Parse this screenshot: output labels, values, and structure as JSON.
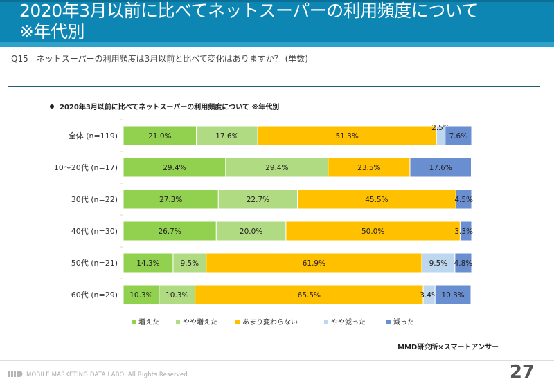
{
  "header": {
    "title_line1": "2020年3月以前に比べてネットスーパーの利用頻度について",
    "title_line2": "※年代別"
  },
  "question": "Q15　ネットスーパーの利用頻度は3月以前と比べて変化はありますか？ (単数)",
  "chart_data": {
    "type": "bar",
    "orientation": "horizontal-stacked-100",
    "title": "2020年3月以前に比べてネットスーパーの利用頻度について ※年代別",
    "categories": [
      "全体 (n=119)",
      "10～20代 (n=17)",
      "30代 (n=22)",
      "40代 (n=30)",
      "50代 (n=21)",
      "60代 (n=29)"
    ],
    "series": [
      {
        "name": "増えた",
        "color": "#92d050",
        "values": [
          21.0,
          29.4,
          27.3,
          26.7,
          14.3,
          10.3
        ]
      },
      {
        "name": "やや増えた",
        "color": "#b0db83",
        "values": [
          17.6,
          29.4,
          22.7,
          20.0,
          9.5,
          10.3
        ]
      },
      {
        "name": "あまり変わらない",
        "color": "#ffc000",
        "values": [
          51.3,
          23.5,
          45.5,
          50.0,
          61.9,
          65.5
        ]
      },
      {
        "name": "やや減った",
        "color": "#bdd7ee",
        "values": [
          2.5,
          0.0,
          0.0,
          0.0,
          9.5,
          3.4
        ]
      },
      {
        "name": "減った",
        "color": "#6a8fd0",
        "values": [
          7.6,
          17.6,
          4.5,
          3.3,
          4.8,
          10.3
        ]
      }
    ],
    "xlim": [
      0,
      100
    ],
    "value_format": "percent, 1 decimal",
    "legend": "bottom",
    "grid": false
  },
  "credit": "MMD研究所×スマートアンサー",
  "footer": {
    "text": "MOBILE MARKETING DATA LABO.  All Rights Reserved.",
    "page_number": "27"
  }
}
